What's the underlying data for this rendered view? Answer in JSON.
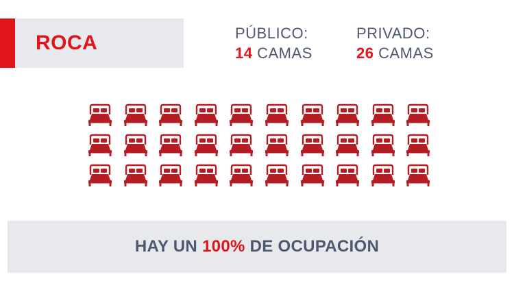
{
  "title": "ROCA",
  "public": {
    "label": "PÚBLICO:",
    "count": "14",
    "unit": " CAMAS"
  },
  "private": {
    "label": "PRIVADO:",
    "count": "26",
    "unit": " CAMAS"
  },
  "beds": {
    "rows": 3,
    "columns": 10,
    "icon": "bed-icon",
    "color": "#b51d24"
  },
  "occupancy": {
    "prefix": "HAY UN ",
    "percent": "100%",
    "suffix": " DE OCUPACIÓN"
  },
  "colors": {
    "accent": "#e2131b",
    "text": "#4d5870",
    "panel": "#e8e9ec",
    "bed": "#b51d24"
  }
}
